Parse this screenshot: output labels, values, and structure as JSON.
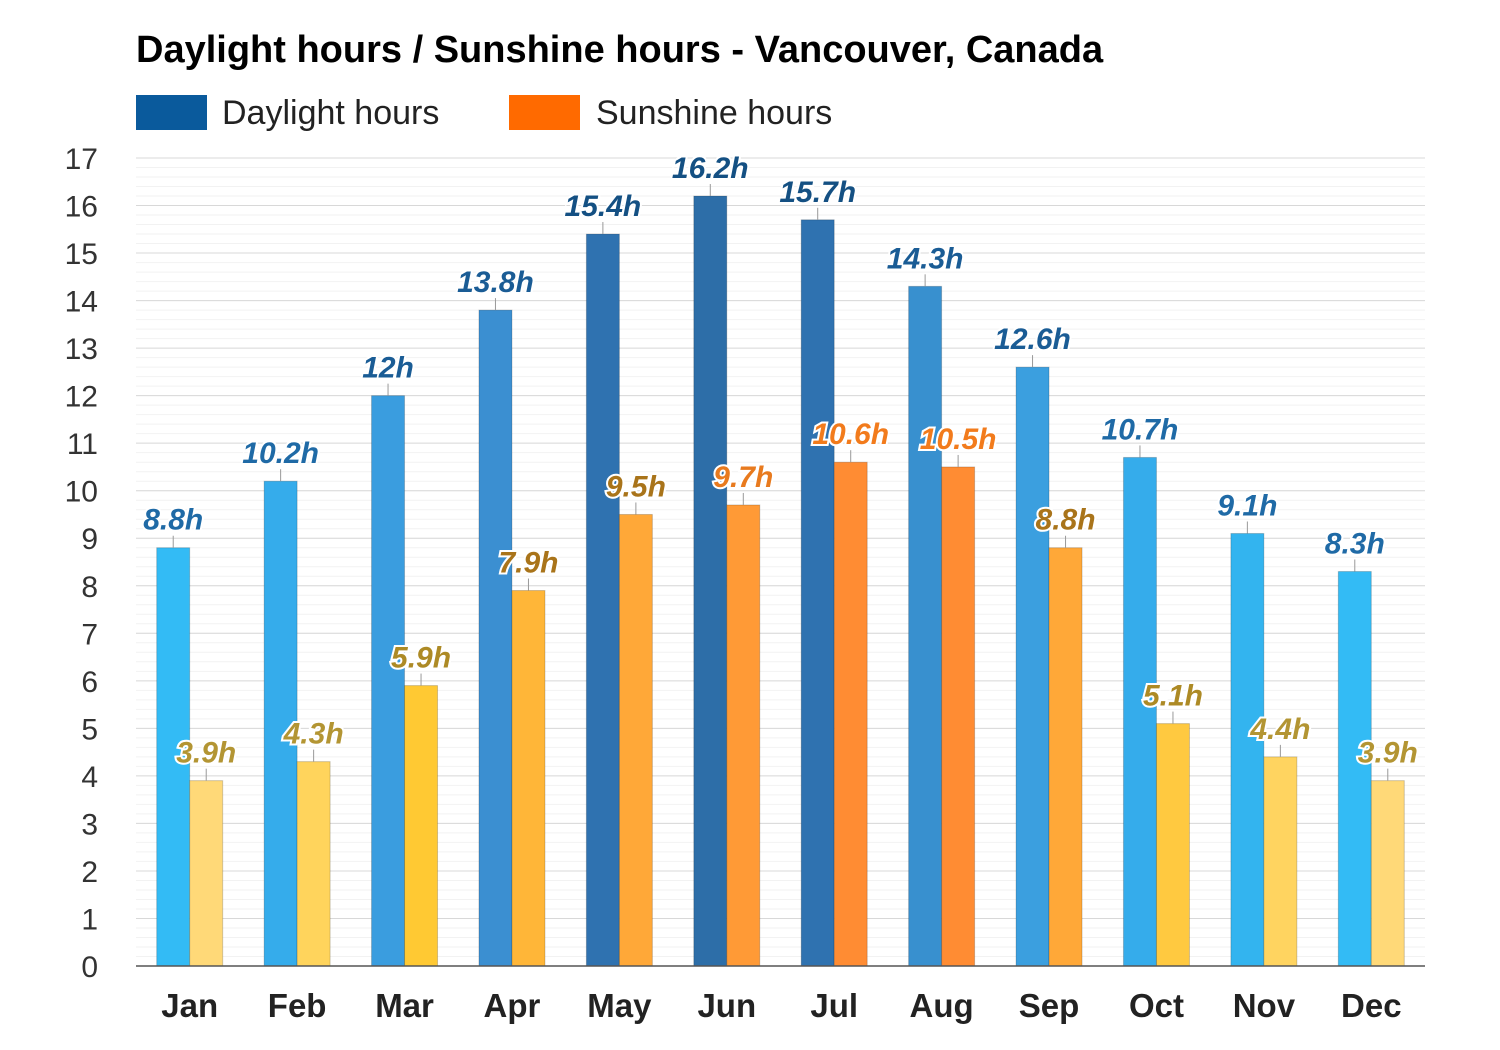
{
  "chart_data": {
    "type": "bar",
    "title": "Daylight hours / Sunshine hours - Vancouver, Canada",
    "xlabel": "",
    "ylabel": "",
    "ylim": [
      0,
      17
    ],
    "yticks": [
      0,
      1,
      2,
      3,
      4,
      5,
      6,
      7,
      8,
      9,
      10,
      11,
      12,
      13,
      14,
      15,
      16,
      17
    ],
    "grid": true,
    "legend_position": "top-left",
    "categories": [
      "Jan",
      "Feb",
      "Mar",
      "Apr",
      "May",
      "Jun",
      "Jul",
      "Aug",
      "Sep",
      "Oct",
      "Nov",
      "Dec"
    ],
    "series": [
      {
        "name": "Daylight hours",
        "legend_color": "#0a5a9c",
        "values": [
          8.8,
          10.2,
          12,
          13.8,
          15.4,
          16.2,
          15.7,
          14.3,
          12.6,
          10.7,
          9.1,
          8.3
        ],
        "labels": [
          "8.8h",
          "10.2h",
          "12h",
          "13.8h",
          "15.4h",
          "16.2h",
          "15.7h",
          "14.3h",
          "12.6h",
          "10.7h",
          "9.1h",
          "8.3h"
        ],
        "bar_colors": [
          "#33bbf5",
          "#35aceb",
          "#3a9ddf",
          "#3b8fd1",
          "#2f72b0",
          "#2d6ea8",
          "#2f72b0",
          "#3890cf",
          "#3b9fdf",
          "#35aceb",
          "#33b4ef",
          "#33bbf5"
        ],
        "label_colors": [
          "#1f6aa6",
          "#1f6aa6",
          "#1a5c95",
          "#1a5c95",
          "#145083",
          "#145083",
          "#145083",
          "#1a5c95",
          "#1a5c95",
          "#1f6aa6",
          "#1f6aa6",
          "#1f6aa6"
        ]
      },
      {
        "name": "Sunshine hours",
        "legend_color": "#ff6a00",
        "values": [
          3.9,
          4.3,
          5.9,
          7.9,
          9.5,
          9.7,
          10.6,
          10.5,
          8.8,
          5.1,
          4.4,
          3.9
        ],
        "labels": [
          "3.9h",
          "4.3h",
          "5.9h",
          "7.9h",
          "9.5h",
          "9.7h",
          "10.6h",
          "10.5h",
          "8.8h",
          "5.1h",
          "4.4h",
          "3.9h"
        ],
        "bar_colors": [
          "#ffd978",
          "#ffd45c",
          "#ffc933",
          "#ffb638",
          "#ffa838",
          "#ff9a36",
          "#ff8c33",
          "#ff8c33",
          "#ffa838",
          "#ffc940",
          "#ffd460",
          "#ffd978"
        ],
        "label_colors": [
          "#b39533",
          "#b39533",
          "#ad8a25",
          "#a9741a",
          "#a9741a",
          "#e87a1e",
          "#f27b1c",
          "#f27b1c",
          "#a9741a",
          "#ad8a25",
          "#b39533",
          "#b39533"
        ]
      }
    ]
  }
}
